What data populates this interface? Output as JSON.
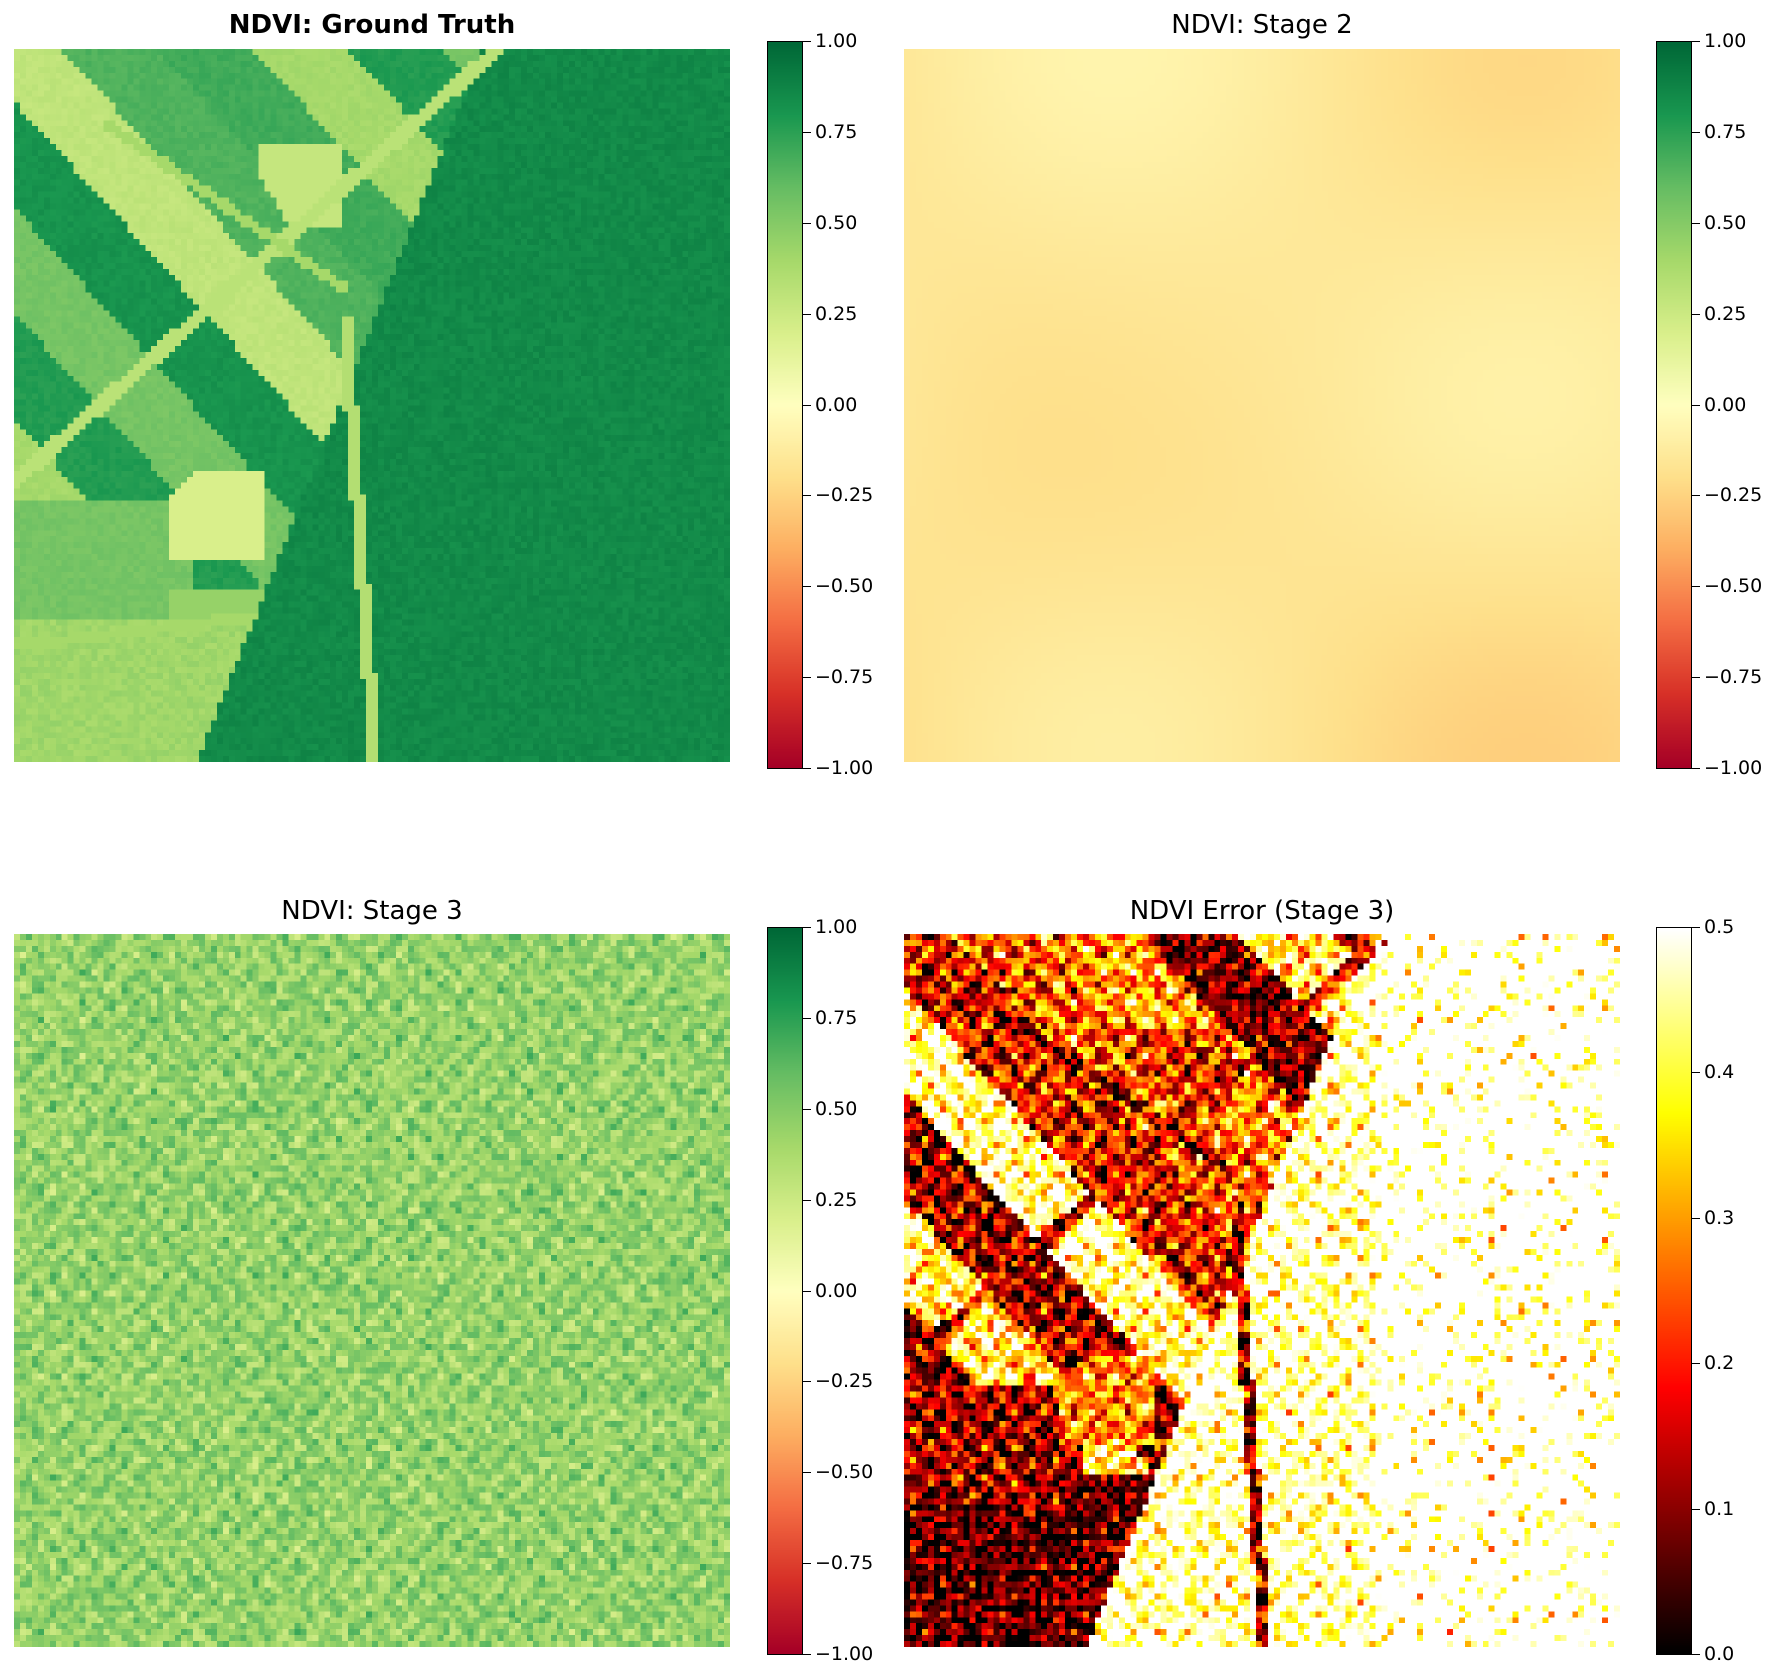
{
  "panels": [
    {
      "id": "ground-truth",
      "title": "NDVI: Ground Truth",
      "bold": true,
      "image": "ndvi-ground-truth",
      "colormap": "RdYlGn",
      "colorbar": {
        "min": -1.0,
        "max": 1.0,
        "tick_labels": [
          "−1.00",
          "−0.75",
          "−0.50",
          "−0.25",
          "0.00",
          "0.25",
          "0.50",
          "0.75",
          "1.00"
        ]
      }
    },
    {
      "id": "stage-2",
      "title": "NDVI: Stage 2",
      "bold": false,
      "image": "ndvi-stage-2",
      "colormap": "RdYlGn",
      "colorbar": {
        "min": -1.0,
        "max": 1.0,
        "tick_labels": [
          "−1.00",
          "−0.75",
          "−0.50",
          "−0.25",
          "0.00",
          "0.25",
          "0.50",
          "0.75",
          "1.00"
        ]
      }
    },
    {
      "id": "stage-3",
      "title": "NDVI: Stage 3",
      "bold": false,
      "image": "ndvi-stage-3",
      "colormap": "RdYlGn",
      "colorbar": {
        "min": -1.0,
        "max": 1.0,
        "tick_labels": [
          "−1.00",
          "−0.75",
          "−0.50",
          "−0.25",
          "0.00",
          "0.25",
          "0.50",
          "0.75",
          "1.00"
        ]
      }
    },
    {
      "id": "error-stage-3",
      "title": "NDVI Error (Stage 3)",
      "bold": false,
      "image": "ndvi-error-stage-3",
      "colormap": "hot",
      "colorbar": {
        "min": 0.0,
        "max": 0.5,
        "tick_labels": [
          "0.0",
          "0.1",
          "0.2",
          "0.3",
          "0.4",
          "0.5"
        ]
      }
    }
  ],
  "chart_data": [
    {
      "type": "heatmap",
      "title": "NDVI: Ground Truth",
      "colormap": "RdYlGn",
      "vmin": -1.0,
      "vmax": 1.0,
      "axes": "off"
    },
    {
      "type": "heatmap",
      "title": "NDVI: Stage 2",
      "colormap": "RdYlGn",
      "vmin": -1.0,
      "vmax": 1.0,
      "axes": "off"
    },
    {
      "type": "heatmap",
      "title": "NDVI: Stage 3",
      "colormap": "RdYlGn",
      "vmin": -1.0,
      "vmax": 1.0,
      "axes": "off"
    },
    {
      "type": "heatmap",
      "title": "NDVI Error (Stage 3)",
      "colormap": "hot",
      "vmin": 0.0,
      "vmax": 0.5,
      "axes": "off"
    }
  ]
}
